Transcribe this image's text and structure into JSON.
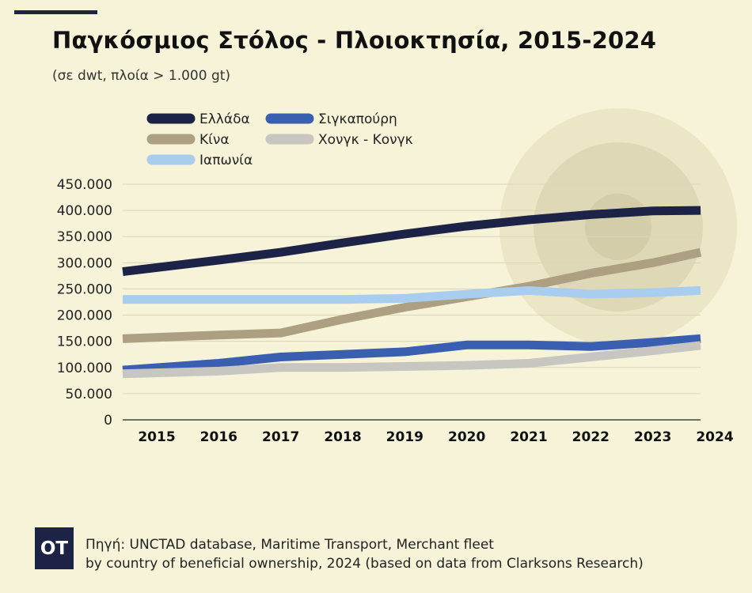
{
  "header": {
    "title": "Παγκόσμιος Στόλος - Πλοιοκτησία, 2015-2024",
    "subtitle": "(σε dwt, πλοία > 1.000 gt)"
  },
  "chart_data": {
    "type": "line",
    "title": "Παγκόσμιος Στόλος - Πλοιοκτησία, 2015-2024",
    "subtitle": "(σε dwt, πλοία > 1.000 gt)",
    "xlabel": "",
    "ylabel": "",
    "categories": [
      "2015",
      "2016",
      "2017",
      "2018",
      "2019",
      "2020",
      "2021",
      "2022",
      "2023",
      "2024"
    ],
    "ylim": [
      0,
      450000
    ],
    "yticks": [
      "0",
      "50.000",
      "100.000",
      "150.000",
      "200.000",
      "250.000",
      "300.000",
      "350.000",
      "400.000",
      "450.000"
    ],
    "legend_position": "top-left",
    "grid": true,
    "series": [
      {
        "name": "Ελλάδα",
        "color": "#1c2346",
        "values": [
          283000,
          305000,
          320000,
          338000,
          355000,
          370000,
          382000,
          392000,
          399000,
          400000
        ]
      },
      {
        "name": "Σιγκαπούρη",
        "color": "#3a5fb0",
        "values": [
          95000,
          108000,
          120000,
          125000,
          130000,
          143000,
          143000,
          140000,
          148000,
          155000
        ]
      },
      {
        "name": "Κίνα",
        "color": "#ada082",
        "values": [
          155000,
          162000,
          166000,
          192000,
          215000,
          235000,
          255000,
          280000,
          300000,
          320000
        ]
      },
      {
        "name": "Χονγκ - Κονγκ",
        "color": "#c8c6c1",
        "values": [
          88000,
          93000,
          100000,
          100000,
          102000,
          104000,
          108000,
          120000,
          132000,
          142000
        ]
      },
      {
        "name": "Ιαπωνία",
        "color": "#a9cdee",
        "values": [
          230000,
          230000,
          230000,
          230000,
          232000,
          240000,
          247000,
          240000,
          243000,
          247000
        ]
      }
    ]
  },
  "logo": {
    "text": "OT"
  },
  "source": {
    "line1": "Πηγή: UNCTAD database, Maritime Transport, Merchant fleet",
    "line2": "by country of beneficial ownership, 2024 (based on data from Clarksons Research)"
  },
  "colors": {
    "background": "#f6f3d9",
    "brand": "#1c2346"
  }
}
